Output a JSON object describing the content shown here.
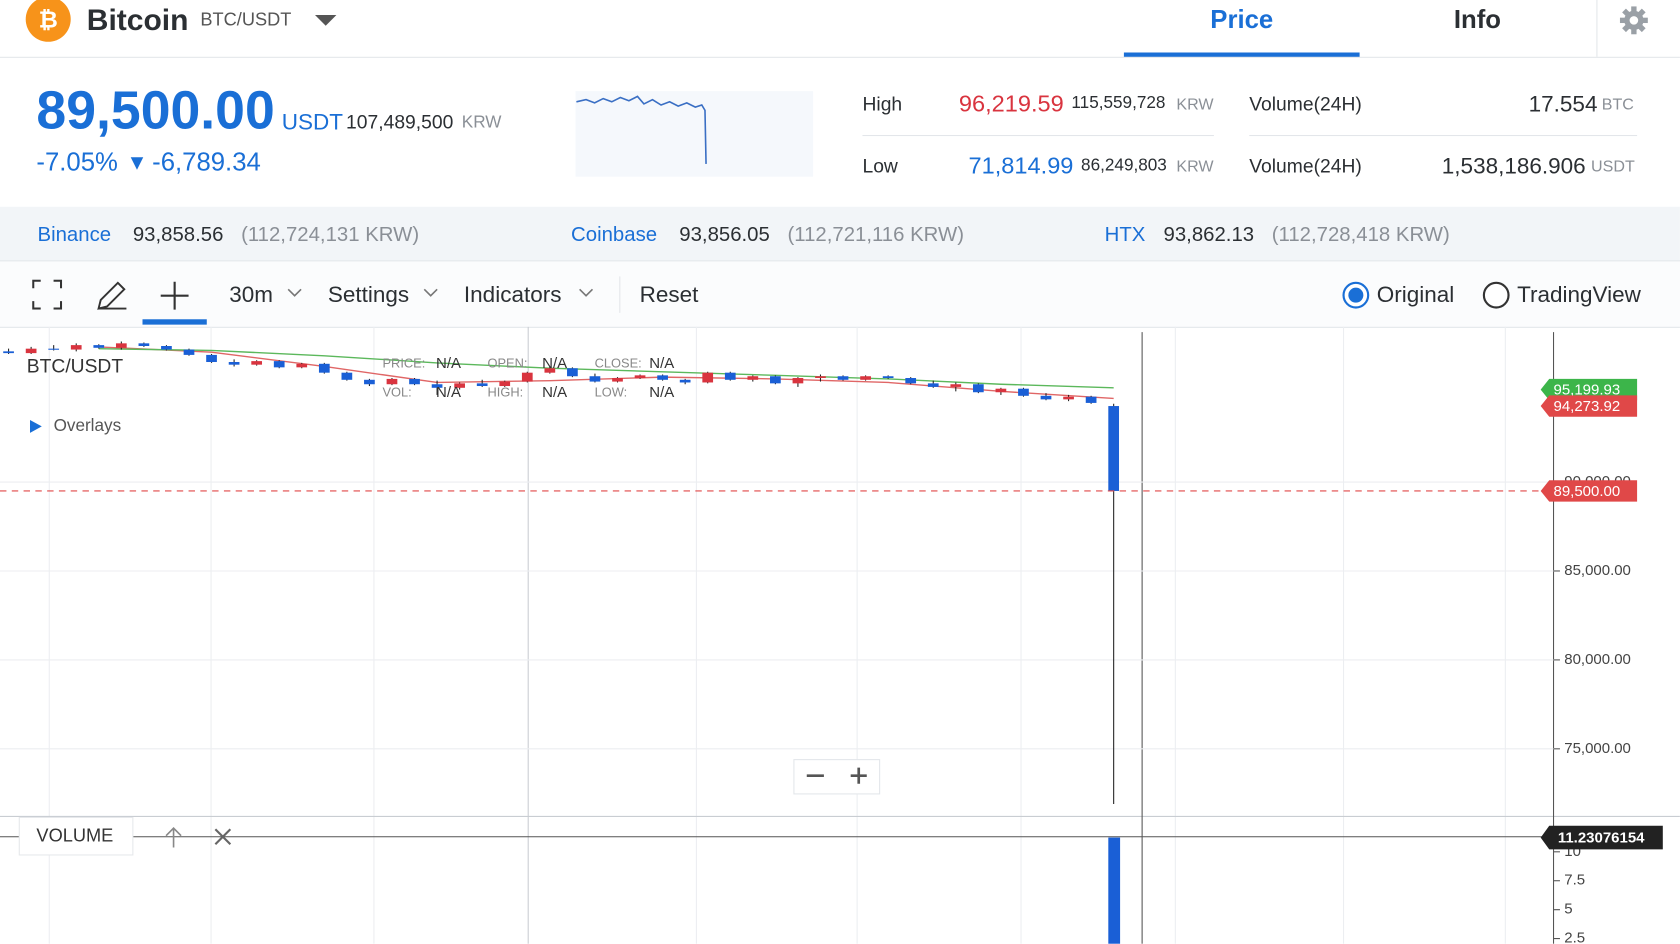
{
  "header": {
    "coin": "Bitcoin",
    "pair": "BTC/USDT",
    "tabs": [
      "Price",
      "Info"
    ]
  },
  "ticker": {
    "price": "89,500.00",
    "price_unit": "USDT",
    "krw": "107,489,500",
    "krw_unit": "KRW",
    "change_pct": "-7.05%",
    "change_arrow": "▼",
    "change": "-6,789.34",
    "stats": [
      {
        "label": "High",
        "value": "96,219.59",
        "krw": "115,559,728",
        "krw_unit": "KRW"
      },
      {
        "label": "Low",
        "value": "71,814.99",
        "krw": "86,249,803",
        "krw_unit": "KRW"
      }
    ],
    "volumes": [
      {
        "label": "Volume(24H)",
        "value": "17.554",
        "unit": "BTC"
      },
      {
        "label": "Volume(24H)",
        "value": "1,538,186.906",
        "unit": "USDT"
      }
    ]
  },
  "exchanges": [
    {
      "name": "Binance",
      "price": "93,858.56",
      "krw": "(112,724,131 KRW)"
    },
    {
      "name": "Coinbase",
      "price": "93,856.05",
      "krw": "(112,721,116 KRW)"
    },
    {
      "name": "HTX",
      "price": "93,862.13",
      "krw": "(112,728,418 KRW)"
    }
  ],
  "toolbar": {
    "interval": "30m",
    "settings": "Settings",
    "indicators": "Indicators",
    "reset": "Reset",
    "modes": [
      "Original",
      "TradingView"
    ]
  },
  "chart": {
    "type": "candlestick",
    "symbol": "BTC/USDT",
    "overlays_label": "Overlays",
    "legend": [
      {
        "label": "PRICE:",
        "value": "N/A"
      },
      {
        "label": "OPEN:",
        "value": "N/A"
      },
      {
        "label": "CLOSE:",
        "value": "N/A"
      },
      {
        "label": "VOL:",
        "value": "N/A"
      },
      {
        "label": "HIGH:",
        "value": "N/A"
      },
      {
        "label": "LOW:",
        "value": "N/A"
      }
    ],
    "up_color": "#d9343f",
    "down_color": "#1a5fd6",
    "candles": [
      [
        97350,
        97500,
        97200,
        97250
      ],
      [
        97250,
        97600,
        97200,
        97500
      ],
      [
        97500,
        97700,
        97400,
        97450
      ],
      [
        97450,
        97800,
        97350,
        97700
      ],
      [
        97700,
        97750,
        97500,
        97550
      ],
      [
        97550,
        97900,
        97450,
        97800
      ],
      [
        97800,
        97850,
        97600,
        97650
      ],
      [
        97650,
        97700,
        97400,
        97450
      ],
      [
        97450,
        97500,
        97100,
        97150
      ],
      [
        97150,
        97200,
        96700,
        96750
      ],
      [
        96750,
        96900,
        96500,
        96600
      ],
      [
        96600,
        96850,
        96550,
        96800
      ],
      [
        96800,
        96850,
        96400,
        96450
      ],
      [
        96450,
        96700,
        96400,
        96650
      ],
      [
        96650,
        96700,
        96100,
        96150
      ],
      [
        96150,
        96200,
        95700,
        95750
      ],
      [
        95750,
        95800,
        95400,
        95500
      ],
      [
        95500,
        95850,
        95450,
        95800
      ],
      [
        95800,
        95850,
        95450,
        95500
      ],
      [
        95500,
        95700,
        94900,
        95300
      ],
      [
        95300,
        95600,
        95200,
        95550
      ],
      [
        95550,
        95750,
        95350,
        95400
      ],
      [
        95400,
        95700,
        95350,
        95650
      ],
      [
        95650,
        96200,
        95600,
        96150
      ],
      [
        96150,
        96500,
        96100,
        96400
      ],
      [
        96400,
        96450,
        95900,
        95950
      ],
      [
        95950,
        96100,
        95600,
        95650
      ],
      [
        95650,
        95900,
        95600,
        95850
      ],
      [
        95850,
        96050,
        95800,
        96000
      ],
      [
        96000,
        96050,
        95700,
        95750
      ],
      [
        95750,
        95800,
        95500,
        95600
      ],
      [
        95600,
        96200,
        95550,
        96150
      ],
      [
        96150,
        96200,
        95700,
        95750
      ],
      [
        95750,
        96000,
        95650,
        95950
      ],
      [
        95950,
        96000,
        95500,
        95550
      ],
      [
        95550,
        95900,
        95350,
        95850
      ],
      [
        95850,
        96050,
        95650,
        95950
      ],
      [
        95950,
        96000,
        95700,
        95750
      ],
      [
        95750,
        96000,
        95700,
        95950
      ],
      [
        95950,
        96000,
        95800,
        95850
      ],
      [
        95850,
        95900,
        95500,
        95550
      ],
      [
        95550,
        95700,
        95300,
        95350
      ],
      [
        95350,
        95600,
        95100,
        95500
      ],
      [
        95500,
        95550,
        95000,
        95050
      ],
      [
        95050,
        95300,
        94900,
        95250
      ],
      [
        95250,
        95300,
        94800,
        94850
      ],
      [
        94850,
        95000,
        94600,
        94650
      ],
      [
        94650,
        94900,
        94550,
        94800
      ],
      [
        94800,
        94850,
        94400,
        94450
      ],
      [
        94273.92,
        94400,
        71900,
        89500
      ]
    ],
    "ma": [
      {
        "color": "#e06666",
        "values": [
          97600,
          97300,
          96500,
          95600,
          95700,
          95900,
          95800,
          95600,
          95100,
          94700
        ]
      },
      {
        "color": "#5cb85c",
        "values": [
          97500,
          97400,
          97100,
          96700,
          96400,
          96200,
          96000,
          95800,
          95500,
          95300
        ]
      }
    ],
    "ylim": [
      71200,
      98430
    ],
    "yticks": [
      {
        "value": 75000,
        "label": "75,000.00"
      },
      {
        "value": 80000,
        "label": "80,000.00"
      },
      {
        "value": 85000,
        "label": "85,000.00"
      },
      {
        "value": 90000,
        "label": "90,000.00"
      }
    ],
    "price_tags": [
      {
        "value": 95199.93,
        "label": "95,199.93",
        "color": "#3cb54a"
      },
      {
        "value": 94273.92,
        "label": "94,273.92",
        "color": "#e04848"
      },
      {
        "value": 89500,
        "label": "89,500.00",
        "color": "#e04848"
      }
    ],
    "volume": {
      "label": "VOLUME",
      "ylim": [
        2.04,
        13.06
      ],
      "yticks": [
        2.5,
        5,
        7.5,
        10
      ],
      "last": {
        "value": 11.23076154,
        "label": "11.23076154"
      }
    }
  }
}
